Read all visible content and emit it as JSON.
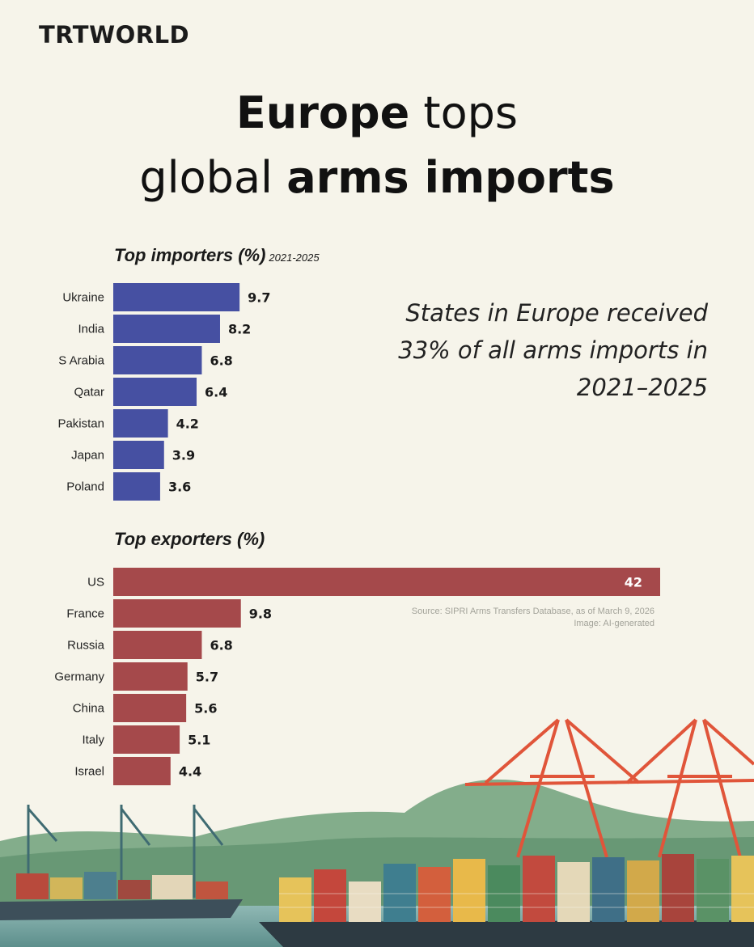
{
  "brand": "TRTWORLD",
  "headline": {
    "line1_bold": "Europe",
    "line1_light": " tops",
    "line2_light": "global ",
    "line2_bold": "arms imports"
  },
  "quote": "States in Europe received 33% of all arms imports in 2021–2025",
  "source": {
    "line1": "Source: SIPRI Arms Transfers Database, as of March 9, 2026",
    "line2": "Image: AI-generated"
  },
  "colors": {
    "importers": "#4650a2",
    "exporters": "#a5494b",
    "background": "#f6f4ea"
  },
  "chart_data": [
    {
      "type": "bar",
      "orientation": "horizontal",
      "title": "Top importers (%)",
      "subtitle": "2021-2025",
      "categories": [
        "Ukraine",
        "India",
        "S Arabia",
        "Qatar",
        "Pakistan",
        "Japan",
        "Poland"
      ],
      "values": [
        9.7,
        8.2,
        6.8,
        6.4,
        4.2,
        3.9,
        3.6
      ],
      "labels": [
        "9.7",
        "8.2",
        "6.8",
        "6.4",
        "4.2",
        "3.9",
        "3.6"
      ]
    },
    {
      "type": "bar",
      "orientation": "horizontal",
      "title": "Top exporters (%)",
      "subtitle": "",
      "categories": [
        "US",
        "France",
        "Russia",
        "Germany",
        "China",
        "Italy",
        "Israel"
      ],
      "values": [
        42,
        9.8,
        6.8,
        5.7,
        5.6,
        5.1,
        4.4
      ],
      "labels": [
        "42",
        "9.8",
        "6.8",
        "5.7",
        "5.6",
        "5.1",
        "4.4"
      ]
    }
  ]
}
